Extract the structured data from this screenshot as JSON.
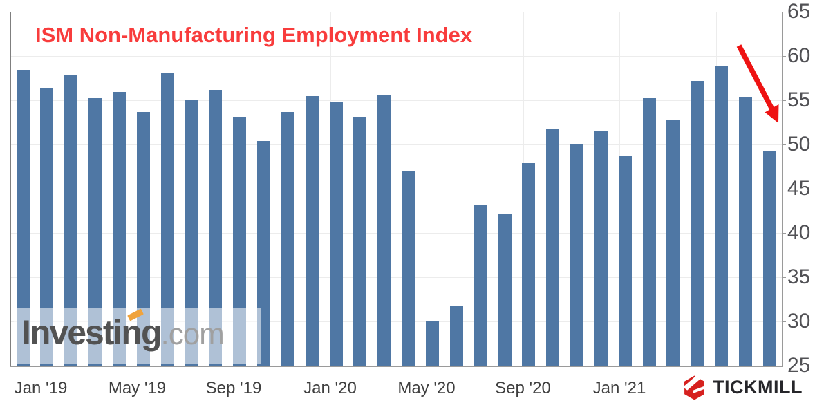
{
  "title": {
    "text": "ISM Non-Manufacturing Employment Index",
    "color": "#f83c3c"
  },
  "watermark": {
    "name": "Investing",
    "suffix": ".com",
    "accent_color": "#f0a33c"
  },
  "branding": {
    "logo_text": "TICKMILL",
    "logo_color": "#d6211f"
  },
  "annotation": {
    "shape": "down-right-arrow",
    "color": "#ee1212",
    "points_at": "Jun '21 bar"
  },
  "y_axis": {
    "labels": [
      "65",
      "60",
      "55",
      "50",
      "45",
      "40",
      "35",
      "30",
      "25"
    ],
    "side": "right"
  },
  "x_axis": {
    "labels": [
      "Jan '19",
      "May '19",
      "Sep '19",
      "Jan '20",
      "May '20",
      "Sep '20",
      "Jan '21"
    ]
  },
  "chart_data": {
    "type": "bar",
    "title": "ISM Non-Manufacturing Employment Index",
    "x": [
      "Nov '18",
      "Dec '18",
      "Jan '19",
      "Feb '19",
      "Mar '19",
      "Apr '19",
      "May '19",
      "Jun '19",
      "Jul '19",
      "Aug '19",
      "Sep '19",
      "Oct '19",
      "Nov '19",
      "Dec '19",
      "Jan '20",
      "Feb '20",
      "Mar '20",
      "Apr '20",
      "May '20",
      "Jun '20",
      "Jul '20",
      "Aug '20",
      "Sep '20",
      "Oct '20",
      "Nov '20",
      "Dec '20",
      "Jan '21",
      "Feb '21",
      "Mar '21",
      "Apr '21",
      "May '21",
      "Jun '21"
    ],
    "values": [
      58.4,
      56.3,
      57.8,
      55.2,
      55.9,
      53.7,
      58.1,
      55.0,
      56.2,
      53.1,
      50.4,
      53.7,
      55.5,
      54.8,
      53.1,
      55.6,
      47.0,
      30.0,
      31.8,
      43.1,
      42.1,
      47.9,
      51.8,
      50.1,
      51.5,
      48.7,
      55.2,
      52.7,
      57.2,
      58.8,
      55.3,
      49.3
    ],
    "ylim": [
      25,
      65
    ],
    "y_tick_step": 5,
    "xlabel": "",
    "ylabel": "",
    "grid": true,
    "legend": "none",
    "bar_color": "#4f77a4"
  }
}
